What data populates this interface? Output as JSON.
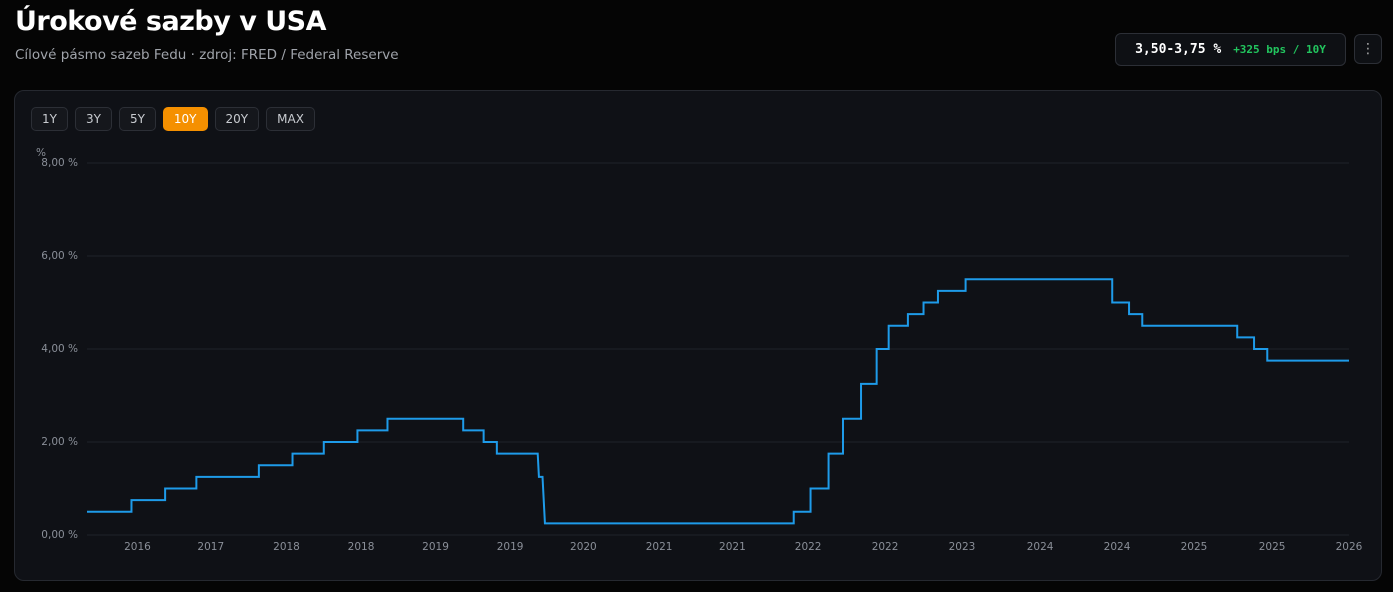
{
  "header": {
    "title": "Úrokové sazby v USA",
    "subtitle": "Cílové pásmo sazeb Fedu · zdroj: FRED / Federal Reserve"
  },
  "badge": {
    "value": "3,50-3,75 %",
    "change": "+325 bps / 10Y"
  },
  "range_buttons": [
    "1Y",
    "3Y",
    "5Y",
    "10Y",
    "20Y",
    "MAX"
  ],
  "selected_range": "10Y",
  "chart_data": {
    "type": "line",
    "y_axis_label": "%",
    "color": "#1e9be9",
    "grid": true,
    "x": [
      2015.5,
      2015.87,
      2015.87,
      2016.15,
      2016.15,
      2016.41,
      2016.41,
      2016.93,
      2016.93,
      2017.21,
      2017.21,
      2017.47,
      2017.47,
      2017.75,
      2017.75,
      2018.0,
      2018.0,
      2018.63,
      2018.63,
      2018.8,
      2018.8,
      2018.91,
      2018.91,
      2019.25,
      2019.26,
      2019.29,
      2019.31,
      2021.38,
      2021.38,
      2021.52,
      2021.52,
      2021.67,
      2021.67,
      2021.79,
      2021.79,
      2021.94,
      2021.94,
      2022.07,
      2022.07,
      2022.17,
      2022.17,
      2022.33,
      2022.33,
      2022.46,
      2022.46,
      2022.58,
      2022.58,
      2022.81,
      2022.81,
      2024.03,
      2024.03,
      2024.17,
      2024.17,
      2024.28,
      2024.28,
      2025.07,
      2025.07,
      2025.21,
      2025.21,
      2025.32,
      2025.32,
      2026.0
    ],
    "values": [
      0.5,
      0.5,
      0.75,
      0.75,
      1.0,
      1.0,
      1.25,
      1.25,
      1.5,
      1.5,
      1.75,
      1.75,
      2.0,
      2.0,
      2.25,
      2.25,
      2.5,
      2.5,
      2.25,
      2.25,
      2.0,
      2.0,
      1.75,
      1.75,
      1.25,
      1.25,
      0.25,
      0.25,
      0.5,
      0.5,
      1.0,
      1.0,
      1.75,
      1.75,
      2.5,
      2.5,
      3.25,
      3.25,
      4.0,
      4.0,
      4.5,
      4.5,
      4.75,
      4.75,
      5.0,
      5.0,
      5.25,
      5.25,
      5.5,
      5.5,
      5.0,
      5.0,
      4.75,
      4.75,
      4.5,
      4.5,
      4.25,
      4.25,
      4.0,
      4.0,
      3.75,
      3.75
    ],
    "xlim": [
      2015.5,
      2026.0
    ],
    "xticks": [
      {
        "value": 2015.92,
        "label": "2016"
      },
      {
        "value": 2016.53,
        "label": "2017"
      },
      {
        "value": 2017.16,
        "label": "2018"
      },
      {
        "value": 2017.78,
        "label": "2018"
      },
      {
        "value": 2018.4,
        "label": "2019"
      },
      {
        "value": 2019.02,
        "label": "2019"
      },
      {
        "value": 2019.63,
        "label": "2020"
      },
      {
        "value": 2020.26,
        "label": "2021"
      },
      {
        "value": 2020.87,
        "label": "2021"
      },
      {
        "value": 2021.5,
        "label": "2022"
      },
      {
        "value": 2022.14,
        "label": "2022"
      },
      {
        "value": 2022.78,
        "label": "2023"
      },
      {
        "value": 2023.43,
        "label": "2024"
      },
      {
        "value": 2024.07,
        "label": "2024"
      },
      {
        "value": 2024.71,
        "label": "2025"
      },
      {
        "value": 2025.36,
        "label": "2025"
      },
      {
        "value": 2026.0,
        "label": "2026"
      }
    ],
    "ylim": [
      0,
      8
    ],
    "yticks": [
      {
        "value": 0,
        "label": "0,00 %"
      },
      {
        "value": 2,
        "label": "2,00 %"
      },
      {
        "value": 4,
        "label": "4,00 %"
      },
      {
        "value": 6,
        "label": "6,00 %"
      },
      {
        "value": 8,
        "label": "8,00 %"
      }
    ]
  }
}
